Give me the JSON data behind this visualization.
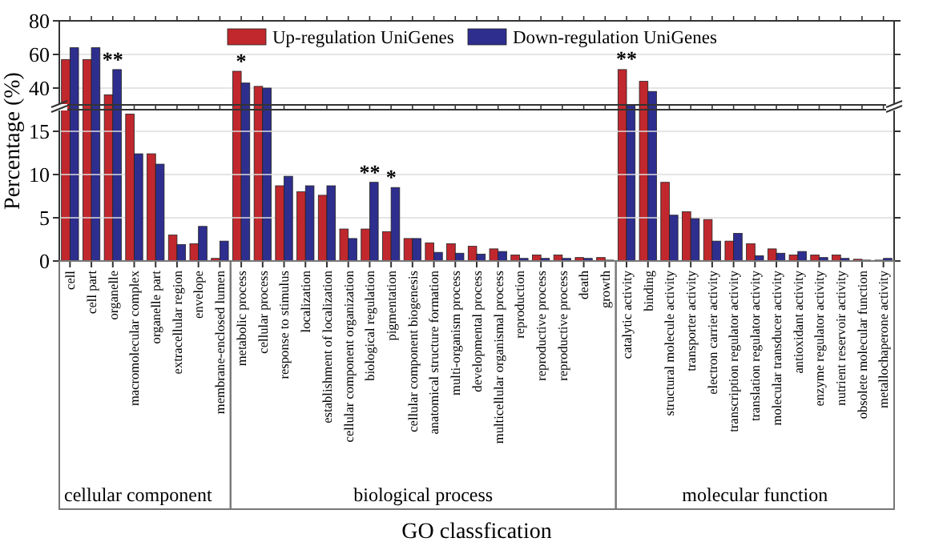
{
  "chart_data": [
    {
      "type": "bar",
      "ylabel": "Percentage (%)",
      "categories": [
        "cell",
        "cell part",
        "organelle",
        "macromolecular complex",
        "organelle part",
        "extracellular region",
        "envelope",
        "membrane-enclosed lumen",
        "metabolic process",
        "cellular process",
        "response to stimulus",
        "localization",
        "establishment of localization",
        "cellular component organization",
        "biological regulation",
        "pigmentation",
        "cellular component biogenesis",
        "anatomical structure formation",
        "multi-organism process",
        "developmental process",
        "multicellular organismal process",
        "reproduction",
        "reproductive process",
        "reproductive process",
        "death",
        "growth",
        "catalytic activity",
        "binding",
        "structural molecule activity",
        "transporter activity",
        "electron carrier activity",
        "transcription regulator activity",
        "translation regulator activity",
        "molecular transducer activity",
        "antioxidant activity",
        "enzyme regulator activity",
        "nutrient reservoir activity",
        "obsolete molecular function",
        "metallochaperone activity"
      ],
      "series": [
        {
          "name": "Up-regulation UniGenes",
          "color": "#c0282d",
          "values": [
            57,
            57,
            36,
            null,
            null,
            null,
            null,
            null,
            50,
            41,
            null,
            null,
            null,
            null,
            null,
            null,
            null,
            null,
            null,
            null,
            null,
            null,
            null,
            null,
            null,
            null,
            51,
            44,
            null,
            null,
            null,
            null,
            null,
            null,
            null,
            null,
            null,
            null,
            null
          ]
        },
        {
          "name": "Down-regulation UniGenes",
          "color": "#2e2e8f",
          "values": [
            64,
            64,
            51,
            null,
            null,
            null,
            null,
            null,
            43,
            40,
            null,
            null,
            null,
            null,
            null,
            null,
            null,
            null,
            null,
            null,
            null,
            null,
            null,
            null,
            null,
            null,
            30,
            38,
            null,
            null,
            null,
            null,
            null,
            null,
            null,
            null,
            null,
            null,
            null
          ]
        }
      ],
      "ylim": [
        30,
        80
      ],
      "yticks": [
        40,
        60,
        80
      ],
      "tick_labels": "y",
      "grid": "y",
      "legend": "top",
      "annotations": [
        {
          "text": "**",
          "x": "organelle",
          "y": 51
        },
        {
          "text": "*",
          "x": "metabolic process",
          "y": 50
        },
        {
          "text": "**",
          "x": "catalytic activity",
          "y": 51.4
        }
      ]
    },
    {
      "type": "bar",
      "xlabel": "GO classfication",
      "categories": [
        "cell",
        "cell part",
        "organelle",
        "macromolecular complex",
        "organelle part",
        "extracellular region",
        "envelope",
        "membrane-enclosed lumen",
        "metabolic process",
        "cellular process",
        "response to stimulus",
        "localization",
        "establishment of localization",
        "cellular component organization",
        "biological regulation",
        "pigmentation",
        "cellular component biogenesis",
        "anatomical structure formation",
        "multi-organism process",
        "developmental process",
        "multicellular organismal process",
        "reproduction",
        "reproductive process",
        "reproductive process",
        "death",
        "growth",
        "catalytic activity",
        "binding",
        "structural molecule activity",
        "transporter activity",
        "electron carrier activity",
        "transcription regulator activity",
        "translation regulator activity",
        "molecular transducer activity",
        "antioxidant activity",
        "enzyme regulator activity",
        "nutrient reservoir activity",
        "obsolete molecular function",
        "metallochaperone activity"
      ],
      "series": [
        {
          "color": "#c0282d",
          "values": [
            null,
            null,
            null,
            17,
            12.4,
            3,
            2,
            0.3,
            null,
            null,
            8.7,
            8,
            7.6,
            3.7,
            3.7,
            3.4,
            2.6,
            2.1,
            2,
            1.7,
            1.4,
            0.7,
            0.7,
            0.7,
            0.4,
            0.4,
            null,
            null,
            9.1,
            5.7,
            4.8,
            2.3,
            2,
            1.4,
            0.7,
            0.7,
            0.7,
            0.2,
            0.1
          ]
        },
        {
          "color": "#2e2e8f",
          "values": [
            null,
            null,
            null,
            12.4,
            11.2,
            1.9,
            4,
            2.3,
            null,
            null,
            9.8,
            8.7,
            8.7,
            2.6,
            9.1,
            8.5,
            2.6,
            1,
            0.9,
            0.8,
            1.1,
            0.3,
            0.3,
            0.3,
            0.3,
            0.1,
            null,
            null,
            5.3,
            4.9,
            2.3,
            3.2,
            0.6,
            0.9,
            1.1,
            0.4,
            0.3,
            0.1,
            0.3
          ]
        }
      ],
      "ylim": [
        0,
        17.5
      ],
      "yticks": [
        0,
        5,
        10,
        15
      ],
      "grid": "y",
      "annotations": [
        {
          "text": "**",
          "x": "biological regulation",
          "y": 9.1
        },
        {
          "text": "*",
          "x": "pigmentation",
          "y": 8.5
        },
        "cellular component",
        "biological process",
        "molecular function"
      ]
    }
  ]
}
